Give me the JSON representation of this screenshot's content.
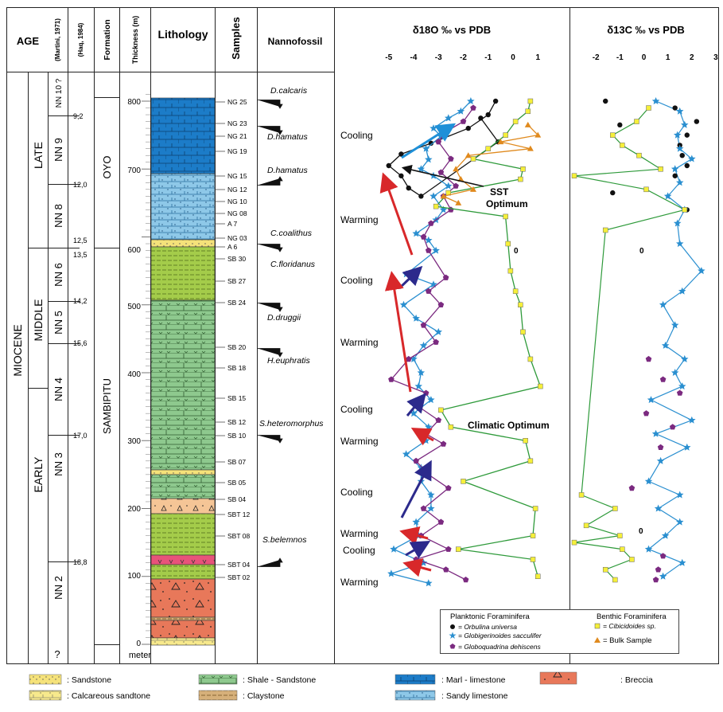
{
  "headers": {
    "age": "AGE",
    "martini": "(Martini, 1971)",
    "haq": "(Haq, 1984)",
    "formation": "Formation",
    "thickness": "Thickness (m)",
    "lithology": "Lithology",
    "samples": "Samples",
    "nannofossil": "Nannofossil",
    "d18o_title": "δ18O ‰ vs PDB",
    "d13c_title": "δ13C ‰ vs PDB"
  },
  "age": {
    "epoch": "MIOCENE",
    "stages": [
      "LATE",
      "MIDDLE",
      "EARLY"
    ]
  },
  "zones": [
    "NN 10 ?",
    "NN 9",
    "NN 8",
    "NN 6",
    "NN 5",
    "NN 4",
    "NN 3",
    "NN 2",
    "?"
  ],
  "haq_ages": [
    "9,2",
    "12,0",
    "12,5",
    "13,5",
    "14,2",
    "15,6",
    "17,0",
    "18,8"
  ],
  "formations": [
    "OYO",
    "SAMBIPITU"
  ],
  "thickness_ticks": [
    "800",
    "700",
    "600",
    "500",
    "400",
    "300",
    "200",
    "100",
    "0"
  ],
  "thickness_unit": "meter",
  "samples": [
    "NG 25",
    "NG 23",
    "NG 21",
    "NG 19",
    "NG 15",
    "NG 12",
    "NG 10",
    "NG 08",
    "A 7",
    "NG 03",
    "A 6",
    "SB 30",
    "SB 27",
    "SB 24",
    "SB 20",
    "SB 18",
    "SB 15",
    "SB 12",
    "SB 10",
    "SB 07",
    "SB 05",
    "SB 04",
    "SBT 12",
    "SBT 08",
    "SBT 04",
    "SBT 02"
  ],
  "nannofossils": [
    "D.calcaris",
    "D.hamatus",
    "D.hamatus",
    "C.coalithus",
    "C.floridanus",
    "D.druggii",
    "H.euphratis",
    "S.heteromorphus",
    "S.belemnos"
  ],
  "climate_labels": [
    "Cooling",
    "Warming",
    "Cooling",
    "Warming",
    "Cooling",
    "Warming",
    "Cooling",
    "Warming",
    "Cooling",
    "Warming"
  ],
  "annotations": {
    "sst_optimum_1": "SST",
    "sst_optimum_2": "Optimum",
    "climatic_optimum": "Climatic Optimum",
    "zero_o": "0",
    "zero_c1": "0",
    "zero_c2": "0"
  },
  "legend_inner": {
    "planktonic_title": "Planktonic Foraminifera",
    "benthic_title": "Benthic Foraminifera",
    "orbulina": "= Orbulina universa",
    "sacculifer": "= Globigerinoides sacculifer",
    "dehiscens": "= Globoquadrina dehiscens",
    "cibicidoides": "= Cibicidoides sp.",
    "bulk": "= Bulk Sample"
  },
  "legend_bottom": {
    "sandstone": ": Sandstone",
    "calc_sandstone": ": Calcareous sandtone",
    "shale_sandstone": ": Shale - Sandstone",
    "claystone": ": Claystone",
    "marl_limestone": ":  Marl - limestone",
    "sandy_limestone": ": Sandy limestone",
    "breccia": ": Breccia"
  },
  "colors": {
    "orbulina": "#111111",
    "sacculifer": "#2a8fd0",
    "dehiscens": "#7b2a80",
    "cibicidoides": "#2e9a3a",
    "bulk": "#e08a1e",
    "cooling_arrow": "#2c2a8c",
    "warming_arrow": "#d8282a",
    "late_cooling_arrow": "#1e90d8",
    "marl": "#1c7cc8",
    "sandy_limestone": "#8ec8e8",
    "shale": "#8ec98e",
    "claystone": "#a4cc4a",
    "breccia": "#e8785a",
    "sandstone": "#f5e27a",
    "calc_sandstone": "#f7e98c",
    "conglomerate": "#f5c596"
  },
  "chart_data": [
    {
      "type": "line",
      "title": "δ18O ‰ vs PDB",
      "xlim": [
        -5.6,
        1.6
      ],
      "x_ticks": [
        "-5",
        "-4",
        "-3",
        "-2",
        "-1",
        "0",
        "1"
      ],
      "y_label": "Thickness (m)",
      "ylim": [
        0,
        810
      ],
      "series": [
        {
          "name": "Orbulina universa",
          "points": [
            [
              -0.7,
              800
            ],
            [
              -1.0,
              780
            ],
            [
              -1.8,
              760
            ],
            [
              -3.3,
              738
            ],
            [
              -4.5,
              722
            ],
            [
              -5.0,
              705
            ],
            [
              -4.5,
              690
            ],
            [
              -4.2,
              672
            ],
            [
              -3.7,
              660
            ],
            [
              -0.6,
              740
            ],
            [
              -1.3,
              775
            ]
          ]
        },
        {
          "name": "Globigerinoides sacculifer",
          "points": [
            [
              -1.7,
              800
            ],
            [
              -2.1,
              785
            ],
            [
              -2.6,
              775
            ],
            [
              -3.2,
              760
            ],
            [
              -2.9,
              748
            ],
            [
              -3.5,
              730
            ],
            [
              -3.4,
              714
            ],
            [
              -3.7,
              700
            ],
            [
              -3.2,
              690
            ],
            [
              -2.6,
              675
            ],
            [
              -3.2,
              660
            ],
            [
              -2.8,
              640
            ],
            [
              -3.1,
              625
            ],
            [
              -3.9,
              605
            ],
            [
              -3.4,
              595
            ],
            [
              -3.1,
              580
            ],
            [
              -4.3,
              545
            ],
            [
              -3.2,
              530
            ],
            [
              -4.4,
              500
            ],
            [
              -3.9,
              480
            ],
            [
              -3.0,
              460
            ],
            [
              -3.6,
              440
            ],
            [
              -4.0,
              420
            ],
            [
              -3.7,
              400
            ],
            [
              -3.8,
              380
            ],
            [
              -3.3,
              360
            ],
            [
              -4.0,
              340
            ],
            [
              -3.4,
              320
            ],
            [
              -3.5,
              300
            ],
            [
              -4.3,
              280
            ],
            [
              -3.7,
              260
            ],
            [
              -3.7,
              240
            ],
            [
              -3.3,
              220
            ],
            [
              -3.3,
              200
            ],
            [
              -3.9,
              180
            ],
            [
              -3.8,
              160
            ],
            [
              -4.8,
              140
            ],
            [
              -3.6,
              120
            ],
            [
              -4.9,
              104
            ],
            [
              -3.4,
              90
            ]
          ]
        },
        {
          "name": "Globoquadrina dehiscens",
          "points": [
            [
              -1.6,
              790
            ],
            [
              -2.0,
              770
            ],
            [
              -2.7,
              755
            ],
            [
              -3.0,
              740
            ],
            [
              -2.5,
              715
            ],
            [
              -2.9,
              695
            ],
            [
              -2.3,
              675
            ],
            [
              -2.8,
              660
            ],
            [
              -2.5,
              640
            ],
            [
              -3.3,
              620
            ],
            [
              -3.6,
              600
            ],
            [
              -3.4,
              580
            ],
            [
              -2.7,
              540
            ],
            [
              -3.4,
              520
            ],
            [
              -2.9,
              500
            ],
            [
              -3.6,
              470
            ],
            [
              -3.1,
              445
            ],
            [
              -4.2,
              420
            ],
            [
              -4.9,
              390
            ],
            [
              -3.5,
              370
            ],
            [
              -3.8,
              350
            ],
            [
              -3.0,
              330
            ],
            [
              -3.5,
              310
            ],
            [
              -2.8,
              295
            ],
            [
              -3.9,
              270
            ],
            [
              -3.4,
              250
            ],
            [
              -2.6,
              230
            ],
            [
              -3.6,
              200
            ],
            [
              -2.9,
              180
            ],
            [
              -3.7,
              160
            ],
            [
              -2.6,
              140
            ],
            [
              -3.9,
              125
            ],
            [
              -2.7,
              110
            ],
            [
              -1.9,
              95
            ]
          ]
        },
        {
          "name": "Cibicidoides sp.",
          "points": [
            [
              0.7,
              800
            ],
            [
              0.6,
              785
            ],
            [
              0.1,
              770
            ],
            [
              -0.3,
              750
            ],
            [
              -1.0,
              730
            ],
            [
              -1.6,
              715
            ],
            [
              0.4,
              700
            ],
            [
              0.3,
              685
            ],
            [
              -2.6,
              665
            ],
            [
              -3.1,
              645
            ],
            [
              -0.3,
              630
            ],
            [
              -0.2,
              590
            ],
            [
              -0.1,
              550
            ],
            [
              0.1,
              520
            ],
            [
              0.3,
              500
            ],
            [
              0.4,
              460
            ],
            [
              0.7,
              420
            ],
            [
              1.1,
              380
            ],
            [
              -2.9,
              345
            ],
            [
              -2.5,
              320
            ],
            [
              0.5,
              300
            ],
            [
              0.7,
              270
            ],
            [
              -2.0,
              240
            ],
            [
              0.9,
              200
            ],
            [
              0.8,
              160
            ],
            [
              -2.2,
              140
            ],
            [
              0.8,
              125
            ],
            [
              1.0,
              100
            ]
          ]
        },
        {
          "name": "Bulk Sample",
          "points": [
            [
              0.6,
              765
            ],
            [
              1.0,
              750
            ],
            [
              -0.5,
              740
            ],
            [
              0.7,
              730
            ],
            [
              -1.8,
              720
            ],
            [
              -2.3,
              700
            ],
            [
              -2.1,
              685
            ],
            [
              -1.6,
              670
            ],
            [
              -2.8,
              660
            ],
            [
              -2.2,
              650
            ]
          ]
        }
      ]
    },
    {
      "type": "scatter",
      "title": "δ13C ‰ vs PDB",
      "xlim": [
        -2.9,
        3.2
      ],
      "x_ticks": [
        "-2",
        "-1",
        "0",
        "1",
        "2",
        "3"
      ],
      "ylim": [
        0,
        810
      ],
      "series": [
        {
          "name": "Orbulina universa",
          "points": [
            [
              -1.6,
              800
            ],
            [
              1.3,
              790
            ],
            [
              2.2,
              770
            ],
            [
              -1.0,
              765
            ],
            [
              1.8,
              750
            ],
            [
              1.5,
              735
            ],
            [
              1.6,
              720
            ],
            [
              1.8,
              705
            ],
            [
              1.3,
              690
            ],
            [
              -1.3,
              665
            ],
            [
              1.8,
              640
            ]
          ]
        },
        {
          "name": "Globigerinoides sacculifer",
          "points": [
            [
              0.5,
              800
            ],
            [
              1.5,
              785
            ],
            [
              1.7,
              765
            ],
            [
              1.4,
              750
            ],
            [
              1.5,
              730
            ],
            [
              2.0,
              715
            ],
            [
              1.3,
              700
            ],
            [
              1.5,
              680
            ],
            [
              1.0,
              660
            ],
            [
              1.7,
              640
            ],
            [
              1.4,
              620
            ],
            [
              1.5,
              590
            ],
            [
              2.4,
              550
            ],
            [
              1.6,
              520
            ],
            [
              0.8,
              500
            ],
            [
              1.3,
              470
            ],
            [
              0.9,
              440
            ],
            [
              1.7,
              420
            ],
            [
              1.3,
              400
            ],
            [
              1.6,
              380
            ],
            [
              0.3,
              360
            ],
            [
              2.0,
              330
            ],
            [
              0.5,
              310
            ],
            [
              1.8,
              290
            ],
            [
              0.7,
              270
            ],
            [
              0.2,
              240
            ],
            [
              1.5,
              220
            ],
            [
              0.6,
              200
            ],
            [
              1.5,
              180
            ],
            [
              0.9,
              160
            ],
            [
              0.2,
              140
            ],
            [
              1.6,
              120
            ],
            [
              0.8,
              100
            ]
          ]
        },
        {
          "name": "Globoquadrina dehiscens",
          "points": [
            [
              0.2,
              420
            ],
            [
              0.8,
              390
            ],
            [
              1.5,
              370
            ],
            [
              0.1,
              340
            ],
            [
              1.2,
              320
            ],
            [
              0.7,
              290
            ],
            [
              -0.5,
              230
            ],
            [
              0.8,
              130
            ],
            [
              0.6,
              110
            ],
            [
              0.5,
              95
            ]
          ]
        },
        {
          "name": "Cibicidoides sp.",
          "points": [
            [
              0.2,
              790
            ],
            [
              -0.3,
              770
            ],
            [
              -1.3,
              750
            ],
            [
              -0.9,
              735
            ],
            [
              -0.2,
              720
            ],
            [
              0.7,
              700
            ],
            [
              -2.9,
              690
            ],
            [
              0.1,
              670
            ],
            [
              1.7,
              640
            ],
            [
              -1.6,
              610
            ],
            [
              -2.6,
              220
            ],
            [
              -1.2,
              200
            ],
            [
              -2.4,
              175
            ],
            [
              -1.0,
              160
            ],
            [
              -2.9,
              150
            ],
            [
              -0.9,
              140
            ],
            [
              -0.5,
              125
            ],
            [
              -1.6,
              110
            ],
            [
              -1.2,
              95
            ]
          ]
        }
      ]
    }
  ]
}
